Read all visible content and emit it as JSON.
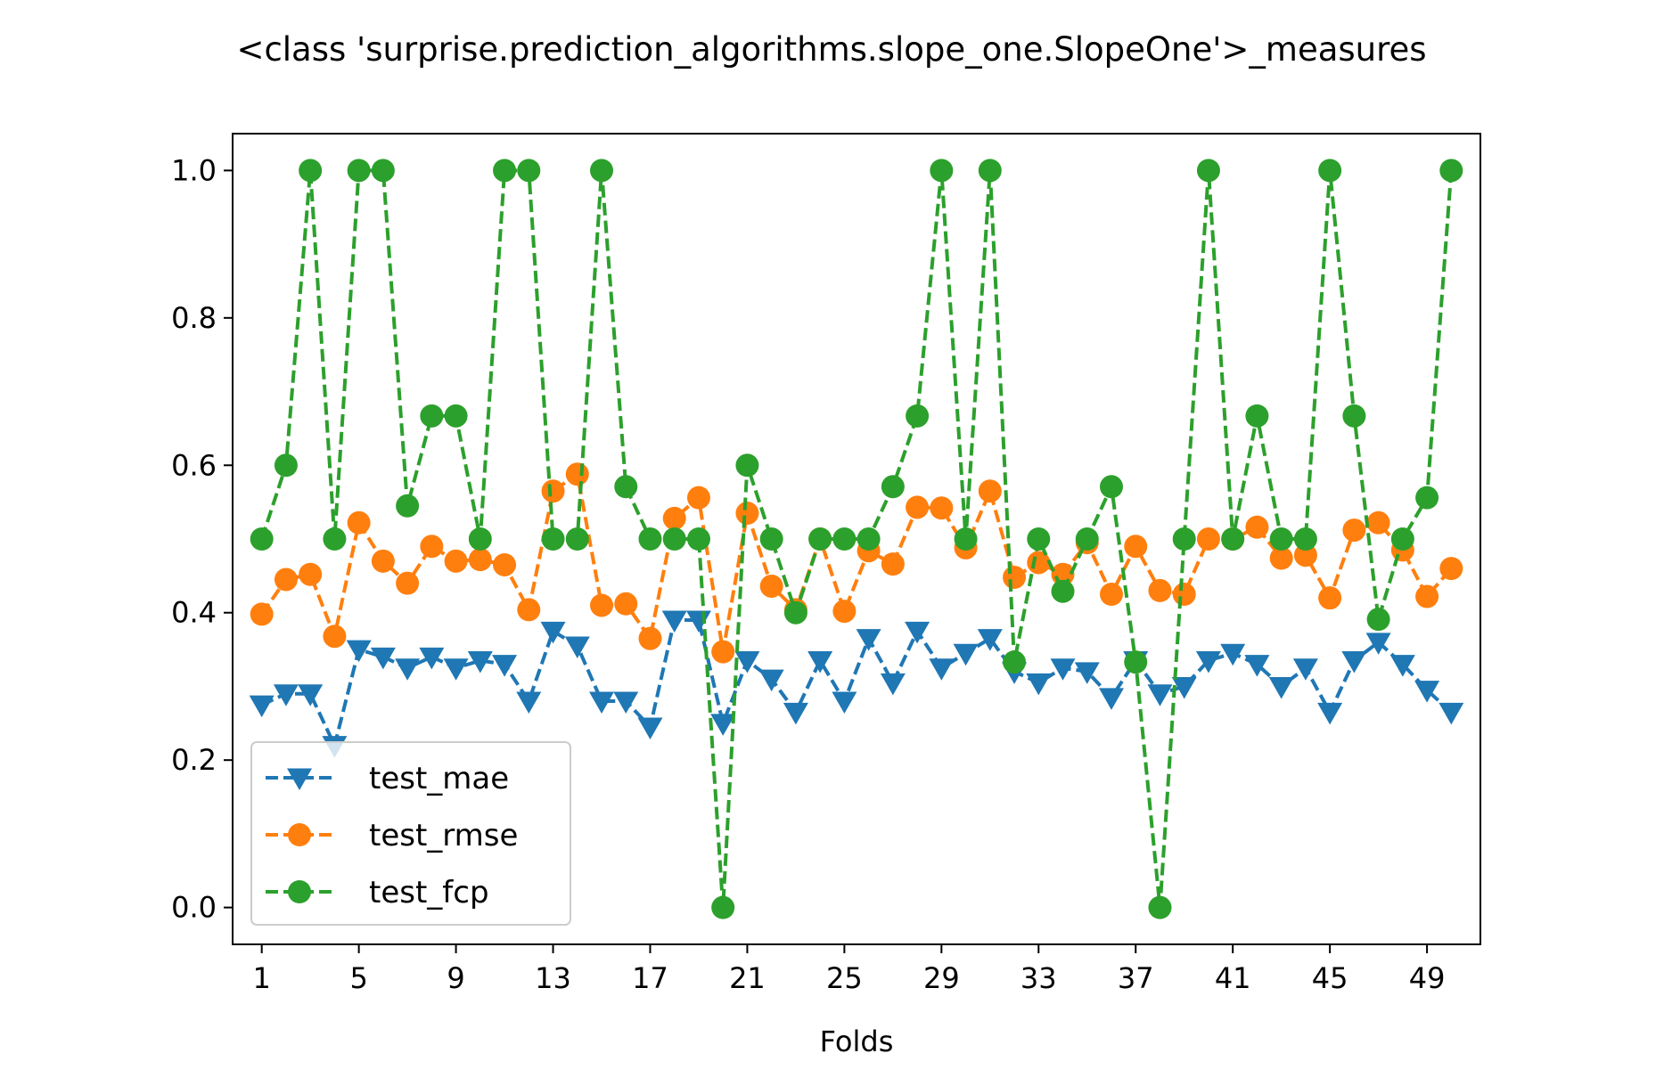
{
  "chart_data": {
    "type": "line",
    "title": "<class 'surprise.prediction_algorithms.slope_one.SlopeOne'>_measures",
    "xlabel": "Folds",
    "ylabel": "",
    "x": [
      1,
      2,
      3,
      4,
      5,
      6,
      7,
      8,
      9,
      10,
      11,
      12,
      13,
      14,
      15,
      16,
      17,
      18,
      19,
      20,
      21,
      22,
      23,
      24,
      25,
      26,
      27,
      28,
      29,
      30,
      31,
      32,
      33,
      34,
      35,
      36,
      37,
      38,
      39,
      40,
      41,
      42,
      43,
      44,
      45,
      46,
      47,
      48,
      49,
      50
    ],
    "xticks": [
      1,
      5,
      9,
      13,
      17,
      21,
      25,
      29,
      33,
      37,
      41,
      45,
      49
    ],
    "yticks": [
      0.0,
      0.2,
      0.4,
      0.6,
      0.8,
      1.0
    ],
    "xlim": [
      -0.2,
      51.2
    ],
    "ylim": [
      -0.05,
      1.05
    ],
    "grid": false,
    "legend": "lower-left",
    "series": [
      {
        "name": "test_mae",
        "color": "#1f77b4",
        "marker": "triangle-down",
        "values": [
          0.275,
          0.29,
          0.29,
          0.22,
          0.35,
          0.34,
          0.325,
          0.34,
          0.325,
          0.335,
          0.33,
          0.28,
          0.375,
          0.355,
          0.28,
          0.28,
          0.245,
          0.39,
          0.39,
          0.25,
          0.335,
          0.31,
          0.265,
          0.335,
          0.28,
          0.365,
          0.305,
          0.375,
          0.325,
          0.345,
          0.365,
          0.32,
          0.305,
          0.325,
          0.32,
          0.285,
          0.335,
          0.29,
          0.3,
          0.335,
          0.345,
          0.33,
          0.3,
          0.325,
          0.265,
          0.335,
          0.36,
          0.33,
          0.295,
          0.265
        ]
      },
      {
        "name": "test_rmse",
        "color": "#ff7f0e",
        "marker": "circle",
        "values": [
          0.398,
          0.445,
          0.452,
          0.368,
          0.522,
          0.47,
          0.44,
          0.49,
          0.47,
          0.472,
          0.465,
          0.404,
          0.565,
          0.588,
          0.41,
          0.412,
          0.365,
          0.528,
          0.556,
          0.347,
          0.535,
          0.436,
          0.404,
          0.5,
          0.402,
          0.484,
          0.466,
          0.543,
          0.542,
          0.488,
          0.565,
          0.448,
          0.468,
          0.452,
          0.495,
          0.425,
          0.49,
          0.43,
          0.425,
          0.5,
          0.5,
          0.516,
          0.474,
          0.478,
          0.42,
          0.512,
          0.522,
          0.485,
          0.422,
          0.46
        ]
      },
      {
        "name": "test_fcp",
        "color": "#2ca02c",
        "marker": "circle",
        "values": [
          0.5,
          0.6,
          1.0,
          0.5,
          1.0,
          1.0,
          0.545,
          0.667,
          0.667,
          0.5,
          1.0,
          1.0,
          0.5,
          0.5,
          1.0,
          0.571,
          0.5,
          0.5,
          0.5,
          0.0,
          0.6,
          0.5,
          0.4,
          0.5,
          0.5,
          0.5,
          0.571,
          0.667,
          1.0,
          0.5,
          1.0,
          0.333,
          0.5,
          0.429,
          0.5,
          0.571,
          0.333,
          0.0,
          0.5,
          1.0,
          0.5,
          0.667,
          0.5,
          0.5,
          1.0,
          0.667,
          0.391,
          0.5,
          0.556,
          1.0
        ]
      }
    ]
  }
}
